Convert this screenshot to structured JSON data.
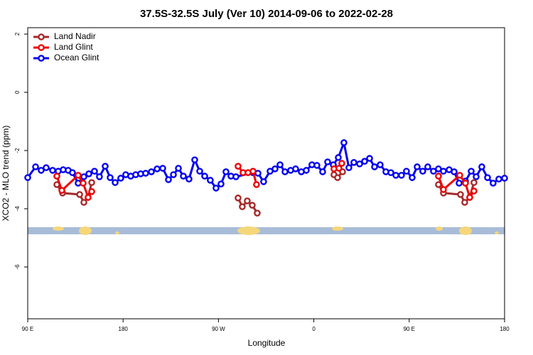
{
  "chart_data": {
    "type": "line",
    "title": "37.5S-32.5S July (Ver 10)   2014-09-06 to 2022-02-28",
    "x_label": "Longitude",
    "y_label": "XCO2 - MLO trend (ppm)",
    "xlim": [
      90,
      540
    ],
    "xticks": [
      {
        "value": 90,
        "label": "90 E"
      },
      180,
      {
        "value": 270,
        "label": "90 W"
      },
      {
        "value": 360,
        "label": "0"
      },
      {
        "value": 450,
        "label": "90 E"
      },
      {
        "value": 540,
        "label": "180"
      }
    ],
    "ylim": [
      -7.78,
      2.22
    ],
    "yticks": [
      -6,
      -4,
      -2,
      0,
      2
    ],
    "legend": "topleft",
    "series": [
      {
        "name": "Land Nadir",
        "color": "#a52a2a",
        "x": [
          117.5,
          122.9,
          139.0,
          143.0,
          147.0,
          150.4,
          null,
          288.5,
          292.5,
          297.2,
          301.9,
          306.6,
          null,
          379.0,
          382.4,
          387.1,
          null,
          477.6,
          482.3,
          498.4,
          502.4,
          507.1,
          511.1
        ],
        "values": [
          -3.17,
          -3.46,
          -3.51,
          -3.78,
          -3.61,
          -3.1,
          null,
          -3.63,
          -3.93,
          -3.73,
          -3.88,
          -4.15,
          null,
          -2.83,
          -2.93,
          -2.73,
          null,
          -3.17,
          -3.46,
          -3.51,
          -3.78,
          -3.61,
          -3.1
        ]
      },
      {
        "name": "Land Glint",
        "color": "#ee0000",
        "x": [
          117.5,
          122.2,
          137.6,
          142.3,
          147.0,
          150.4,
          null,
          288.5,
          293.2,
          297.9,
          302.6,
          305.9,
          null,
          379.0,
          383.7,
          386.4,
          null,
          477.6,
          482.3,
          497.7,
          503.1,
          507.1,
          511.1
        ],
        "values": [
          -2.88,
          -3.37,
          -2.85,
          -3.12,
          -3.61,
          -3.41,
          null,
          -2.54,
          -2.76,
          -2.76,
          -2.71,
          -3.17,
          null,
          -2.63,
          -2.61,
          -2.44,
          null,
          -2.88,
          -3.34,
          -2.85,
          -3.12,
          -3.61,
          -3.39
        ]
      },
      {
        "name": "Ocean Glint",
        "color": "#0000ee",
        "x": [
          90.0,
          97.4,
          102.7,
          107.4,
          113.5,
          118.8,
          123.5,
          128.2,
          132.2,
          137.6,
          143.0,
          147.7,
          153.0,
          157.7,
          163.1,
          167.8,
          172.5,
          177.8,
          182.5,
          187.2,
          191.9,
          196.6,
          201.3,
          206.7,
          212.1,
          217.4,
          222.8,
          227.5,
          232.2,
          236.9,
          242.2,
          247.6,
          252.3,
          257.0,
          262.3,
          267.7,
          272.4,
          277.1,
          281.8,
          286.5,
          302.6,
          307.3,
          312.6,
          318.7,
          323.4,
          328.1,
          332.8,
          338.1,
          342.8,
          348.2,
          352.9,
          358.2,
          362.9,
          368.3,
          373.0,
          378.4,
          383.1,
          388.4,
          393.1,
          397.8,
          403.2,
          407.9,
          412.6,
          417.3,
          422.6,
          428.0,
          432.7,
          437.4,
          442.7,
          447.4,
          452.8,
          457.5,
          462.8,
          467.5,
          472.9,
          477.6,
          482.3,
          487.7,
          492.4,
          497.1,
          503.1,
          508.5,
          513.2,
          518.5,
          523.9,
          529.2,
          534.6,
          540.0
        ],
        "values": [
          -2.93,
          -2.56,
          -2.68,
          -2.59,
          -2.68,
          -2.71,
          -2.66,
          -2.68,
          -2.76,
          -3.12,
          -2.9,
          -2.8,
          -2.71,
          -2.9,
          -2.54,
          -2.93,
          -3.1,
          -2.95,
          -2.83,
          -2.88,
          -2.83,
          -2.8,
          -2.78,
          -2.73,
          -2.63,
          -2.61,
          -3.0,
          -2.83,
          -2.61,
          -2.88,
          -2.98,
          -2.32,
          -2.71,
          -2.88,
          -3.02,
          -3.29,
          -3.15,
          -2.73,
          -2.88,
          -2.9,
          -2.76,
          -2.78,
          -3.07,
          -2.71,
          -2.63,
          -2.49,
          -2.73,
          -2.68,
          -2.63,
          -2.73,
          -2.68,
          -2.49,
          -2.51,
          -2.73,
          -2.39,
          -2.49,
          -2.24,
          -1.73,
          -2.59,
          -2.41,
          -2.46,
          -2.37,
          -2.27,
          -2.56,
          -2.49,
          -2.73,
          -2.76,
          -2.85,
          -2.85,
          -2.71,
          -2.93,
          -2.56,
          -2.71,
          -2.56,
          -2.71,
          -2.63,
          -2.71,
          -2.66,
          -2.73,
          -3.12,
          -3.05,
          -2.71,
          -2.9,
          -2.56,
          -2.93,
          -3.12,
          -2.98,
          -2.95
        ]
      }
    ]
  }
}
